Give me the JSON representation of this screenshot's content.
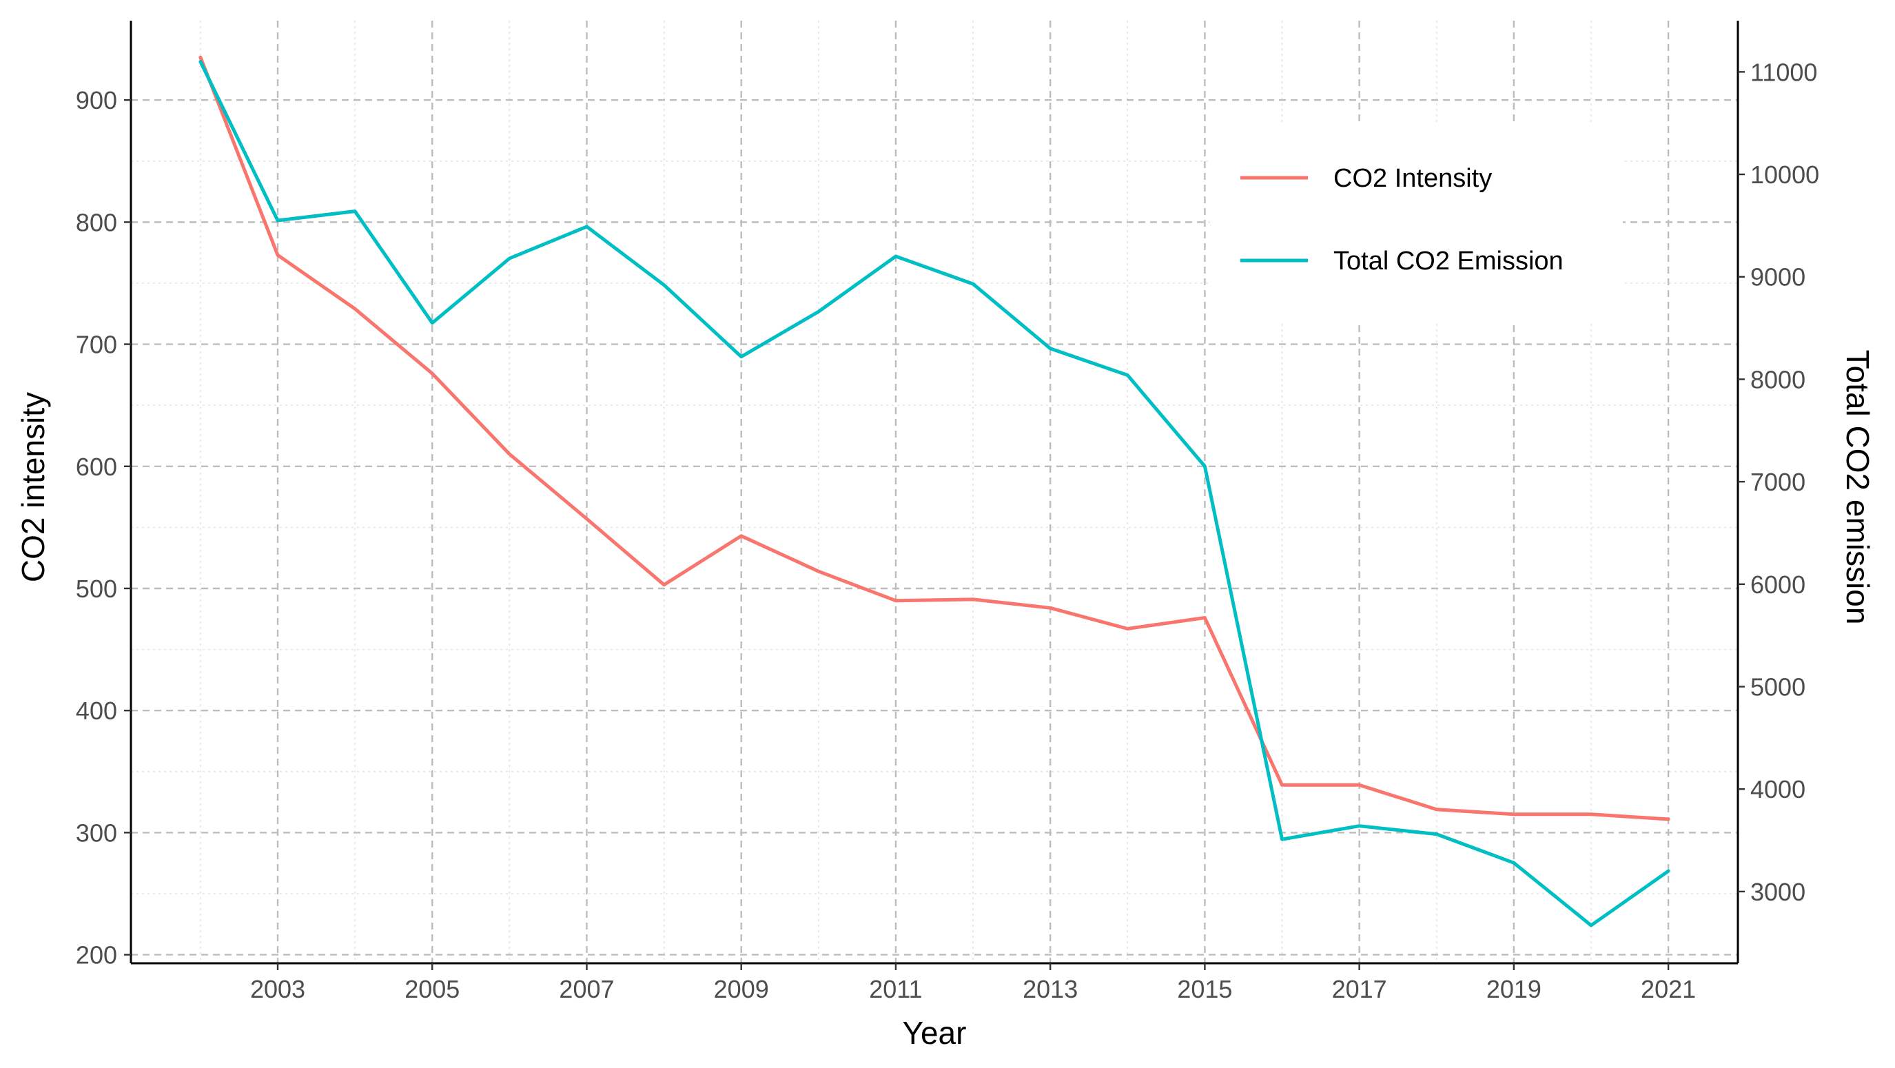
{
  "chart_data": {
    "type": "line",
    "x": [
      2002,
      2003,
      2004,
      2005,
      2006,
      2007,
      2008,
      2009,
      2010,
      2011,
      2012,
      2013,
      2014,
      2015,
      2016,
      2017,
      2018,
      2019,
      2020,
      2021
    ],
    "x_ticks": [
      2003,
      2005,
      2007,
      2009,
      2011,
      2013,
      2015,
      2017,
      2019,
      2021
    ],
    "xlim": [
      2001.1,
      2021.9
    ],
    "xlabel": "Year",
    "ylabel": "CO2 intensity",
    "ylim": [
      193,
      965
    ],
    "y_ticks": [
      200,
      300,
      400,
      500,
      600,
      700,
      800,
      900
    ],
    "y2label": "Total CO2 emission",
    "y2lim": [
      2300,
      11500
    ],
    "y2_ticks": [
      3000,
      4000,
      5000,
      6000,
      7000,
      8000,
      9000,
      10000,
      11000
    ],
    "grid": true,
    "legend_position": "top-right",
    "series": [
      {
        "name": "CO2 Intensity",
        "axis": "left",
        "color": "#F8766D",
        "values": [
          935,
          773,
          729,
          676,
          610,
          557,
          503,
          543,
          514,
          490,
          491,
          484,
          467,
          476,
          339,
          339,
          319,
          315,
          315,
          311
        ]
      },
      {
        "name": "Total CO2 Emission",
        "axis": "right",
        "color": "#00BFC4",
        "values": [
          11100,
          9550,
          9640,
          8550,
          9180,
          9490,
          8920,
          8220,
          8660,
          9200,
          8930,
          8300,
          8040,
          7150,
          3510,
          3640,
          3560,
          3280,
          2670,
          3200
        ]
      }
    ]
  }
}
